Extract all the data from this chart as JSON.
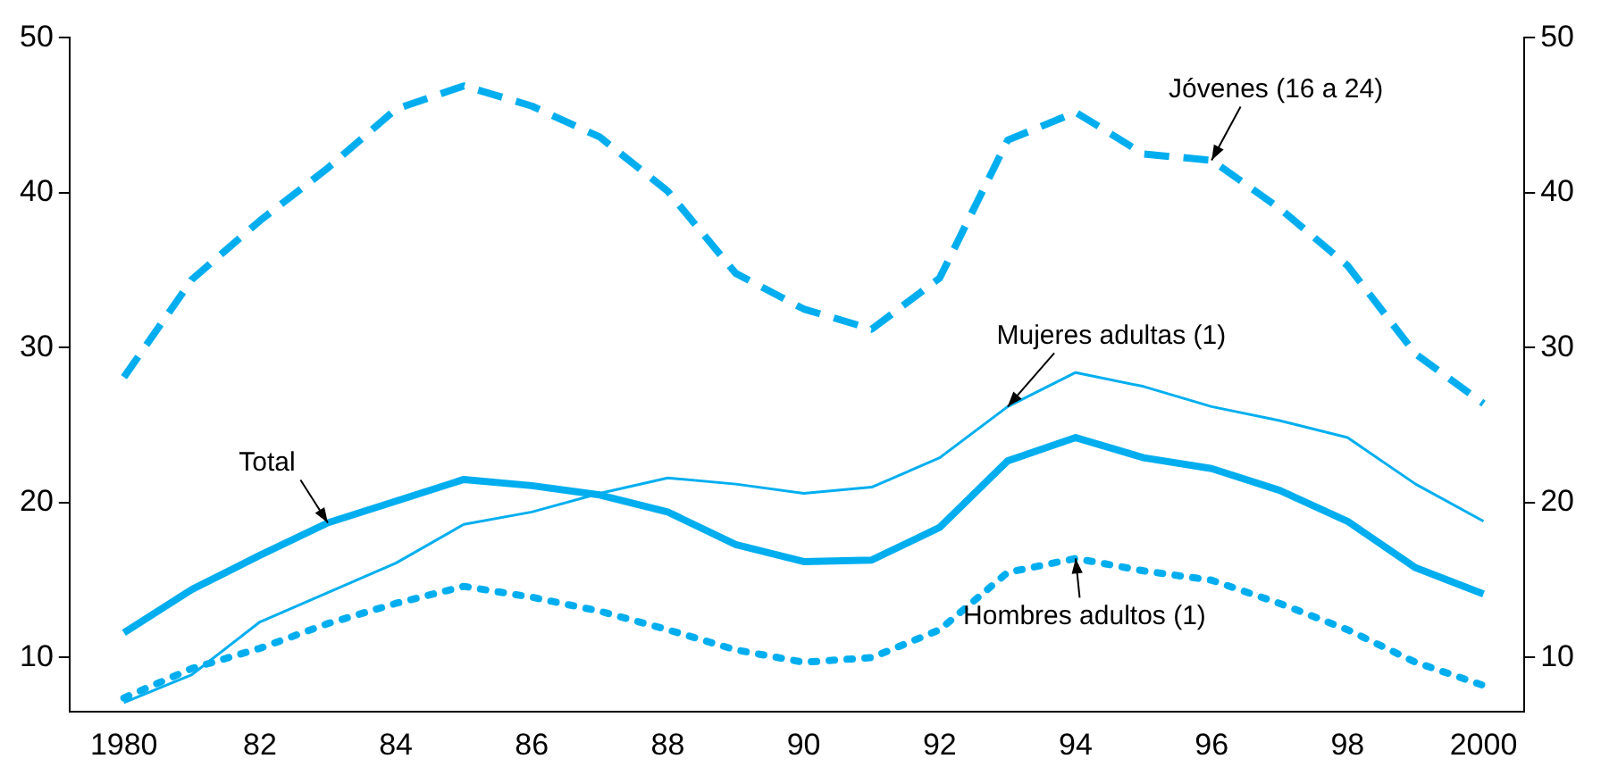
{
  "chart_data": {
    "type": "line",
    "x": [
      1980,
      1981,
      1982,
      1983,
      1984,
      1985,
      1986,
      1987,
      1988,
      1989,
      1990,
      1991,
      1992,
      1993,
      1994,
      1995,
      1996,
      1997,
      1998,
      1999,
      2000
    ],
    "series": [
      {
        "name": "Jóvenes (16 a 24)",
        "color": "#00aeef",
        "line_style": "dashed",
        "values": [
          28.1,
          34.4,
          38.2,
          41.6,
          45.4,
          46.9,
          45.6,
          43.6,
          40.1,
          34.8,
          32.5,
          31.2,
          34.5,
          43.4,
          45.2,
          42.5,
          42.1,
          39,
          35.3,
          29.6,
          26.4
        ]
      },
      {
        "name": "Mujeres adultas (1)",
        "color": "#00aeef",
        "line_style": "solid",
        "values": [
          7.1,
          8.9,
          12.3,
          14.2,
          16.1,
          18.6,
          19.4,
          20.6,
          21.6,
          21.2,
          20.6,
          21,
          22.9,
          26.2,
          28.4,
          27.5,
          26.2,
          25.3,
          24.2,
          21.2,
          18.8
        ]
      },
      {
        "name": "Total",
        "color": "#00aeef",
        "line_style": "solid",
        "values": [
          11.6,
          14.4,
          16.6,
          18.7,
          20.1,
          21.5,
          21.1,
          20.5,
          19.4,
          17.3,
          16.2,
          16.3,
          18.4,
          22.7,
          24.2,
          22.9,
          22.2,
          20.8,
          18.8,
          15.8,
          14.1
        ]
      },
      {
        "name": "Hombres adultos (1)",
        "color": "#00aeef",
        "line_style": "dotted",
        "values": [
          7.4,
          9.3,
          10.6,
          12.2,
          13.5,
          14.6,
          13.9,
          13,
          11.8,
          10.5,
          9.7,
          10,
          11.8,
          15.5,
          16.4,
          15.6,
          15,
          13.5,
          11.8,
          9.7,
          8.2
        ]
      }
    ],
    "xlim": [
      1979.2,
      2000.6
    ],
    "xticks": [
      {
        "value": 1980,
        "label": "1980"
      },
      {
        "value": 1982,
        "label": "82"
      },
      {
        "value": 1984,
        "label": "84"
      },
      {
        "value": 1986,
        "label": "86"
      },
      {
        "value": 1988,
        "label": "88"
      },
      {
        "value": 1990,
        "label": "90"
      },
      {
        "value": 1992,
        "label": "92"
      },
      {
        "value": 1994,
        "label": "94"
      },
      {
        "value": 1996,
        "label": "96"
      },
      {
        "value": 1998,
        "label": "98"
      },
      {
        "value": 2000,
        "label": "2000"
      }
    ],
    "ylim": [
      6.5,
      50
    ],
    "yticks": [
      10,
      20,
      30,
      40,
      50
    ],
    "y2lim": [
      6.5,
      50
    ],
    "y2ticks": [
      10,
      20,
      30,
      40,
      50
    ],
    "grid": false,
    "legend": false,
    "marker": "none"
  }
}
